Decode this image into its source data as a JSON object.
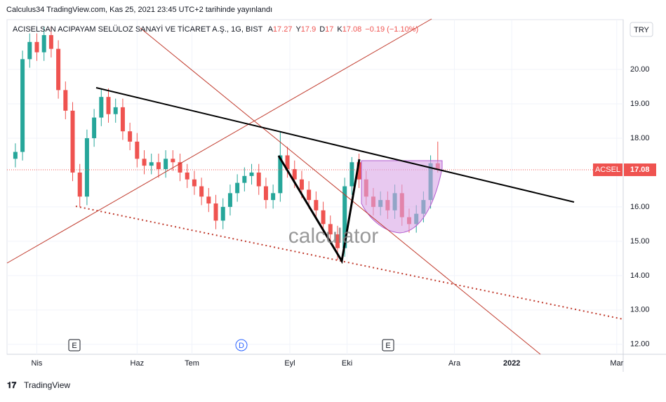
{
  "header": "Calculus34 TradingView.com, Kas 25, 2021 23:45 UTC+2 tarihinde yayınlandı",
  "footer": "TradingView",
  "watermark": "calculator",
  "chart_data": {
    "type": "candlestick",
    "title": "ACISELSAN ACIPAYAM SELÜLOZ SANAYİ VE TİCARET A.Ş., 1G, BIST",
    "ohlc_legend": [
      {
        "label": "A",
        "value": 17.27
      },
      {
        "label": "Y",
        "value": 17.9
      },
      {
        "label": "D",
        "value": 17.0
      },
      {
        "label": "K",
        "value": 17.08
      }
    ],
    "change": "−0.19 (−1.10%)",
    "currency": "TRY",
    "symbol": "ACSEL",
    "last_price": {
      "value": 17.08,
      "label": "17.08"
    },
    "events": [
      "E",
      "D",
      "E"
    ],
    "up_color": "#26a69a",
    "down_color": "#ef5350",
    "x": [
      0,
      3,
      6,
      9,
      12,
      15,
      18,
      21,
      24,
      27,
      30,
      33,
      36,
      39,
      42,
      45,
      48,
      51,
      54,
      57,
      60,
      63,
      66,
      69,
      72,
      75,
      78,
      81,
      84,
      87,
      90,
      93,
      96,
      99,
      102,
      105,
      108,
      111,
      114,
      117,
      120,
      123,
      126,
      129,
      132,
      135,
      138,
      141,
      144,
      147,
      150,
      153,
      156,
      159,
      162,
      165,
      168,
      171,
      174,
      177
    ],
    "open": [
      17.4,
      17.6,
      20.3,
      20.8,
      20.5,
      21.0,
      20.6,
      19.4,
      18.8,
      17.0,
      16.3,
      18.0,
      18.6,
      19.2,
      18.7,
      18.9,
      18.2,
      17.9,
      17.4,
      17.2,
      17.3,
      17.1,
      17.4,
      17.3,
      17.0,
      16.8,
      16.6,
      16.3,
      16.1,
      15.6,
      16.0,
      16.4,
      16.7,
      16.9,
      17.0,
      16.6,
      16.2,
      16.4,
      17.5,
      17.1,
      16.8,
      16.5,
      16.2,
      15.9,
      15.5,
      15.2,
      14.8,
      16.6,
      17.3,
      16.8,
      16.3,
      16.0,
      16.2,
      15.9,
      16.4,
      15.7,
      15.5,
      15.8,
      16.2,
      17.27
    ],
    "high": [
      17.85,
      20.55,
      21.05,
      21.05,
      21.25,
      21.25,
      20.85,
      19.65,
      19.05,
      17.25,
      18.25,
      18.85,
      19.45,
      19.45,
      19.15,
      19.15,
      18.45,
      18.15,
      17.65,
      17.55,
      17.55,
      17.65,
      17.65,
      17.55,
      17.25,
      17.05,
      16.85,
      16.55,
      16.35,
      16.25,
      16.65,
      16.95,
      17.15,
      17.25,
      17.25,
      16.85,
      16.65,
      18.2,
      17.75,
      17.35,
      17.05,
      16.75,
      16.45,
      16.15,
      15.75,
      15.45,
      16.85,
      17.45,
      17.55,
      17.05,
      16.55,
      16.45,
      16.45,
      16.65,
      16.65,
      15.95,
      16.05,
      16.45,
      17.5,
      17.9
    ],
    "low": [
      17.15,
      17.35,
      20.05,
      20.25,
      20.25,
      20.35,
      19.15,
      18.55,
      16.75,
      16.0,
      16.05,
      17.75,
      18.35,
      18.45,
      18.45,
      17.95,
      17.65,
      17.15,
      16.95,
      16.95,
      16.85,
      16.85,
      17.05,
      16.75,
      16.55,
      16.35,
      16.05,
      15.85,
      15.35,
      15.35,
      15.75,
      16.15,
      16.45,
      16.65,
      16.35,
      15.95,
      15.95,
      16.15,
      16.85,
      16.55,
      16.25,
      15.95,
      15.65,
      15.25,
      14.95,
      14.45,
      14.55,
      16.35,
      16.55,
      16.05,
      15.75,
      15.75,
      15.65,
      15.65,
      15.45,
      15.25,
      15.25,
      15.55,
      15.95,
      17.0
    ],
    "close": [
      17.6,
      20.3,
      20.8,
      20.5,
      21.0,
      20.6,
      19.4,
      18.8,
      17.0,
      16.3,
      18.0,
      18.6,
      19.2,
      18.7,
      18.9,
      18.2,
      17.9,
      17.4,
      17.2,
      17.3,
      17.1,
      17.4,
      17.3,
      17.0,
      16.8,
      16.6,
      16.3,
      16.1,
      15.6,
      16.0,
      16.4,
      16.7,
      16.9,
      17.0,
      16.6,
      16.2,
      16.4,
      17.5,
      17.1,
      16.8,
      16.5,
      16.2,
      15.9,
      15.5,
      15.2,
      14.8,
      16.6,
      17.3,
      16.8,
      16.3,
      16.0,
      16.2,
      15.9,
      16.4,
      15.7,
      15.5,
      15.8,
      16.2,
      17.27,
      17.08
    ],
    "xlim": [
      -3.5,
      254.7
    ],
    "xticks": [
      {
        "value": 9,
        "label": "Nis"
      },
      {
        "value": 51,
        "label": "Haz"
      },
      {
        "value": 74,
        "label": "Tem"
      },
      {
        "value": 115,
        "label": "Eyl"
      },
      {
        "value": 139,
        "label": "Eki"
      },
      {
        "value": 184,
        "label": "Ara"
      },
      {
        "value": 208,
        "label": "2022"
      },
      {
        "value": 252,
        "label": "Mar"
      }
    ],
    "ylim": [
      11.71,
      21.45
    ],
    "yticks": [
      {
        "value": 12,
        "label": "12.00"
      },
      {
        "value": 13,
        "label": "13.00"
      },
      {
        "value": 14,
        "label": "14.00"
      },
      {
        "value": 15,
        "label": "15.00"
      },
      {
        "value": 16,
        "label": "16.00"
      },
      {
        "value": 18,
        "label": "18.00"
      },
      {
        "value": 19,
        "label": "19.00"
      },
      {
        "value": 20,
        "label": "20.00"
      }
    ]
  }
}
